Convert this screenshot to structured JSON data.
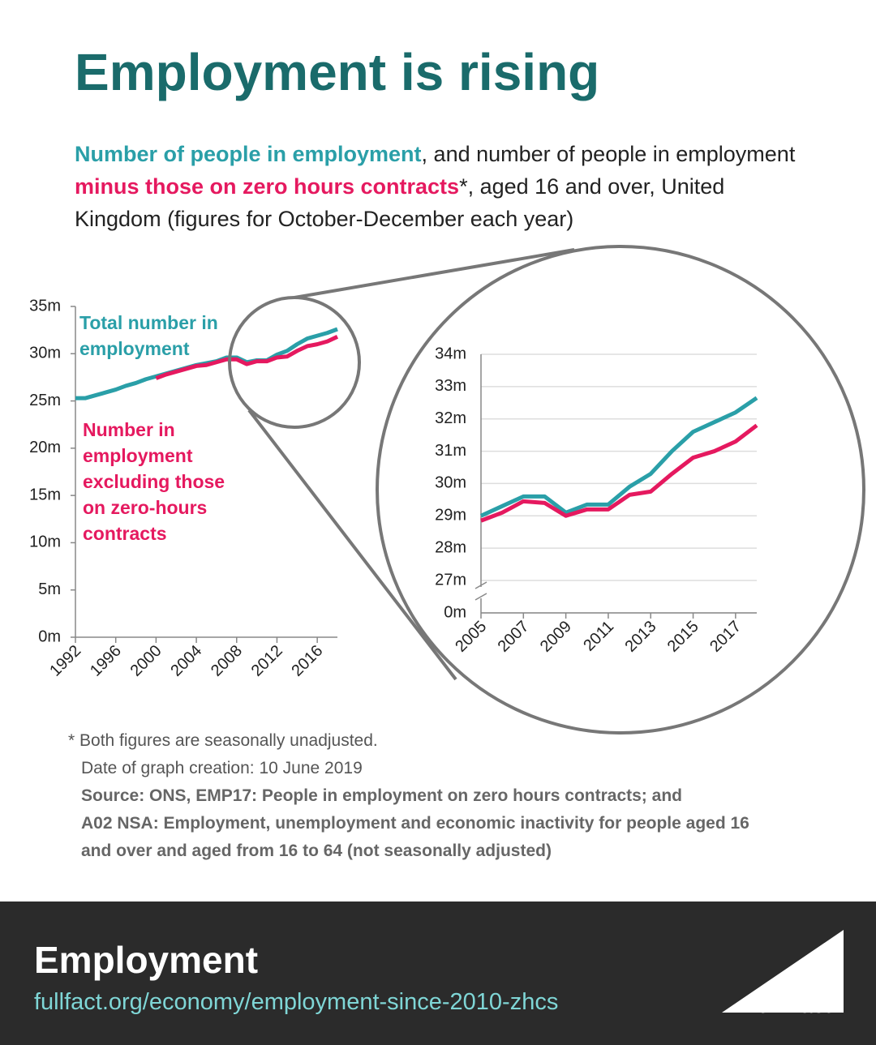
{
  "title": "Employment is rising",
  "subtitle": [
    "Number of people in employment",
    ", and number of people in employment ",
    "minus those on zero hours contracts",
    "*, aged 16 and over, United Kingdom (figures for October-December each year)"
  ],
  "chart_data": [
    {
      "type": "line",
      "x": [
        1992,
        1993,
        1994,
        1995,
        1996,
        1997,
        1998,
        1999,
        2000,
        2001,
        2002,
        2003,
        2004,
        2005,
        2006,
        2007,
        2008,
        2009,
        2010,
        2011,
        2012,
        2013,
        2014,
        2015,
        2016,
        2017,
        2018
      ],
      "xlim": [
        1992,
        2018
      ],
      "xticks": [
        1992,
        1996,
        2000,
        2004,
        2008,
        2012,
        2016
      ],
      "ylim": [
        0,
        35
      ],
      "yticks": [
        {
          "value": 0,
          "label": "0m"
        },
        {
          "value": 5,
          "label": "5m"
        },
        {
          "value": 10,
          "label": "10m"
        },
        {
          "value": 15,
          "label": "15m"
        },
        {
          "value": 20,
          "label": "20m"
        },
        {
          "value": 25,
          "label": "25m"
        },
        {
          "value": 30,
          "label": "30m"
        },
        {
          "value": 35,
          "label": "35m"
        }
      ],
      "grid": false,
      "series": [
        {
          "name": "Total number in employment",
          "color": "#2a9fa8",
          "values": [
            25.3,
            25.3,
            25.6,
            25.9,
            26.2,
            26.6,
            26.9,
            27.3,
            27.6,
            27.9,
            28.2,
            28.5,
            28.8,
            29.0,
            29.2,
            29.6,
            29.6,
            29.1,
            29.3,
            29.3,
            29.9,
            30.3,
            31.0,
            31.6,
            31.9,
            32.2,
            32.6
          ]
        },
        {
          "name": "Number in employment excluding those on zero-hours contracts",
          "color": "#e5195f",
          "values": [
            null,
            null,
            null,
            null,
            null,
            null,
            null,
            null,
            27.4,
            27.8,
            28.1,
            28.4,
            28.7,
            28.8,
            29.1,
            29.4,
            29.4,
            28.9,
            29.2,
            29.2,
            29.6,
            29.7,
            30.3,
            30.8,
            31.0,
            31.3,
            31.8
          ]
        }
      ]
    },
    {
      "type": "line",
      "x": [
        2005,
        2006,
        2007,
        2008,
        2009,
        2010,
        2011,
        2012,
        2013,
        2014,
        2015,
        2016,
        2017,
        2018
      ],
      "xlim": [
        2005,
        2018
      ],
      "xticks": [
        2005,
        2007,
        2009,
        2011,
        2013,
        2015,
        2017
      ],
      "ylim": [
        0,
        34
      ],
      "axis_break": true,
      "yticks": [
        {
          "value": 0,
          "label": "0m"
        },
        {
          "value": 27,
          "label": "27m"
        },
        {
          "value": 28,
          "label": "28m"
        },
        {
          "value": 29,
          "label": "29m"
        },
        {
          "value": 30,
          "label": "30m"
        },
        {
          "value": 31,
          "label": "31m"
        },
        {
          "value": 32,
          "label": "32m"
        },
        {
          "value": 33,
          "label": "33m"
        },
        {
          "value": 34,
          "label": "34m"
        }
      ],
      "grid": true,
      "series": [
        {
          "color": "#2a9fa8",
          "values": [
            29.0,
            29.3,
            29.6,
            29.6,
            29.1,
            29.35,
            29.35,
            29.9,
            30.3,
            31.0,
            31.6,
            31.9,
            32.2,
            32.65
          ]
        },
        {
          "color": "#e5195f",
          "values": [
            28.85,
            29.1,
            29.45,
            29.4,
            29.0,
            29.2,
            29.2,
            29.65,
            29.75,
            30.3,
            30.8,
            31.0,
            31.3,
            31.8
          ]
        }
      ]
    }
  ],
  "notes": [
    "* Both figures are seasonally unadjusted.",
    "Date of graph creation: 10 June 2019"
  ],
  "source": [
    "Source: ONS, EMP17: People in employment on zero hours contracts; and",
    "A02 NSA: Employment, unemployment and economic inactivity for people aged 16",
    "and over and aged from 16 to 64 (not seasonally adjusted)"
  ],
  "footer": {
    "topic": "Employment",
    "url": "fullfact.org/economy/employment-since-2010-zhcs",
    "logo": "Full Fact"
  }
}
